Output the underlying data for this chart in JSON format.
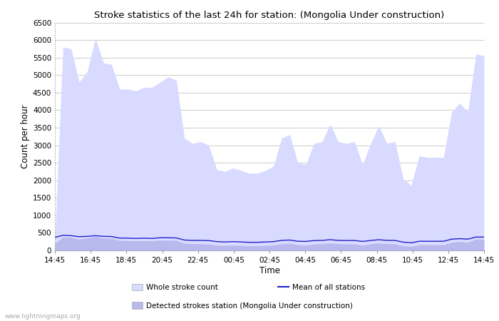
{
  "title": "Stroke statistics of the last 24h for station: (Mongolia Under construction)",
  "xlabel": "Time",
  "ylabel": "Count per hour",
  "x_labels": [
    "14:45",
    "16:45",
    "18:45",
    "20:45",
    "22:45",
    "00:45",
    "02:45",
    "04:45",
    "06:45",
    "08:45",
    "10:45",
    "12:45",
    "14:45"
  ],
  "ylim": [
    0,
    6500
  ],
  "yticks": [
    0,
    500,
    1000,
    1500,
    2000,
    2500,
    3000,
    3500,
    4000,
    4500,
    5000,
    5500,
    6000,
    6500
  ],
  "bg_color": "#ffffff",
  "plot_bg_color": "#ffffff",
  "grid_color": "#cccccc",
  "fill_whole_color": "#d8daff",
  "fill_detected_color": "#b8baee",
  "line_mean_color": "#2222cc",
  "watermark": "www.lightningmaps.org",
  "whole_stroke": [
    350,
    5800,
    5750,
    4800,
    5100,
    6050,
    5350,
    5300,
    4600,
    4600,
    4550,
    4650,
    4650,
    4800,
    4950,
    4850,
    3200,
    3050,
    3100,
    3000,
    2300,
    2250,
    2350,
    2280,
    2200,
    2200,
    2280,
    2400,
    3200,
    3300,
    2500,
    2450,
    3050,
    3100,
    3600,
    3100,
    3050,
    3100,
    2450,
    3050,
    3550,
    3050,
    3100,
    2050,
    1850,
    2700,
    2650,
    2650,
    2650,
    3950,
    4200,
    3950,
    5600,
    5550
  ],
  "detected_stroke": [
    200,
    380,
    370,
    320,
    350,
    400,
    350,
    340,
    280,
    280,
    270,
    280,
    270,
    290,
    290,
    280,
    200,
    190,
    190,
    180,
    150,
    140,
    150,
    140,
    130,
    130,
    140,
    150,
    190,
    200,
    160,
    150,
    180,
    190,
    210,
    190,
    185,
    185,
    150,
    185,
    210,
    190,
    190,
    130,
    110,
    160,
    160,
    160,
    160,
    230,
    250,
    230,
    320,
    320
  ],
  "mean_stroke": [
    370,
    430,
    420,
    390,
    400,
    420,
    400,
    395,
    350,
    350,
    340,
    350,
    340,
    360,
    360,
    355,
    295,
    285,
    285,
    280,
    250,
    240,
    250,
    240,
    230,
    230,
    240,
    250,
    285,
    295,
    260,
    255,
    280,
    285,
    305,
    285,
    282,
    282,
    255,
    282,
    305,
    285,
    285,
    235,
    215,
    260,
    260,
    260,
    260,
    320,
    335,
    320,
    380,
    380
  ],
  "legend_whole": "Whole stroke count",
  "legend_detected": "Detected strokes station (Mongolia Under construction)",
  "legend_mean": "Mean of all stations"
}
